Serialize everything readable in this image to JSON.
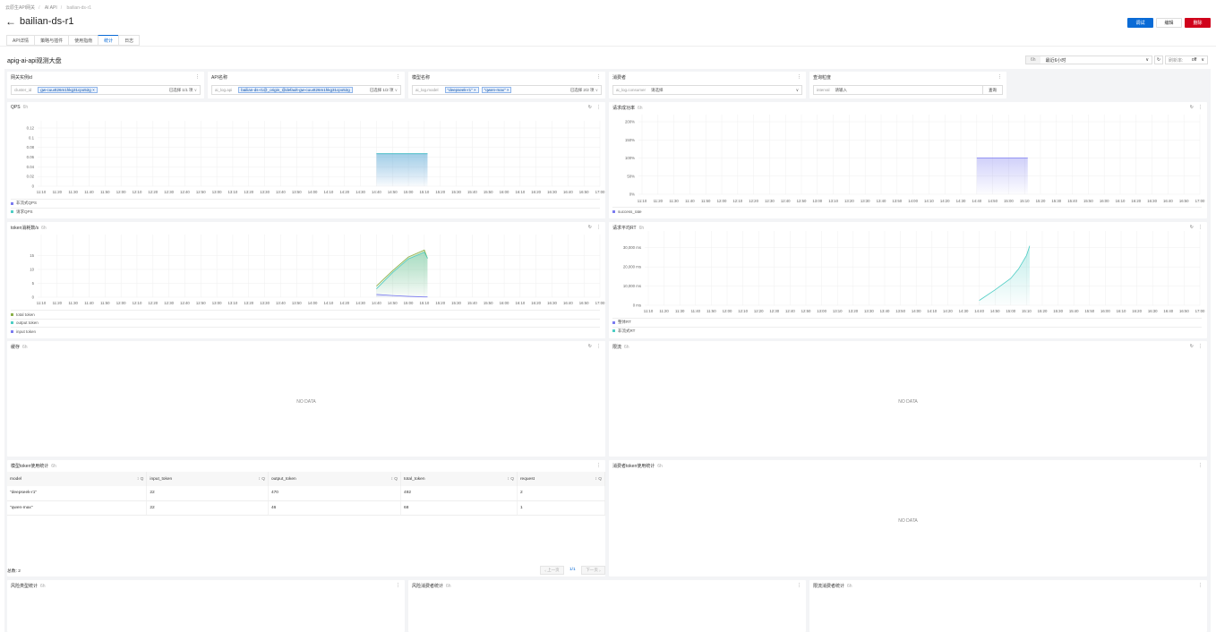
{
  "breadcrumb": [
    "云原生API网关",
    "AI API",
    "bailian-ds-r1"
  ],
  "header": {
    "title": "bailian-ds-r1",
    "back_icon": "arrow-left-icon",
    "buttons": {
      "debug": "调试",
      "edit": "编辑",
      "delete": "删除"
    },
    "colors": {
      "primary": "#0a6bd6",
      "danger": "#d0021b"
    }
  },
  "tabs": [
    {
      "label": "API详情"
    },
    {
      "label": "策略与插件"
    },
    {
      "label": "使用指南"
    },
    {
      "label": "统计",
      "active": true
    },
    {
      "label": "日志"
    }
  ],
  "dashboard": {
    "title": "apig-ai-api观测大盘",
    "time_prefix": "6h",
    "time_value": "最近6小时",
    "refresh_label": "刷新率:",
    "refresh_value": "off"
  },
  "filters": [
    {
      "title": "网关实例id",
      "key": "cluster_id",
      "tags": [
        "gw-cuu4t26m1hkg31cpo52g"
      ],
      "count": "已选择 1/1 项"
    },
    {
      "title": "API名称",
      "key": "ai_log.api",
      "tags": [
        "bailian-ds-r1@_origin_@default-gw-cuu4t26m1hkg31cpo52g"
      ],
      "count": "已选择 1/2 项"
    },
    {
      "title": "模型名称",
      "key": "ai_log.model",
      "tags": [
        "\"deepseek-r1\"",
        "\"qwen-max\""
      ],
      "count": "已选择 2/2 项"
    },
    {
      "title": "消费者",
      "key": "ai_log.consumer",
      "placeholder": "请选择"
    },
    {
      "title": "查询粒度",
      "key": "interval",
      "placeholder": "请输入",
      "button": "查询"
    }
  ],
  "panels": {
    "sub": "6h",
    "nodata": "NO DATA",
    "cache": "缓存",
    "ratelimit": "限流",
    "consumer_token": "消费者token使用统计",
    "risk_type": "风险类型统计",
    "risk_consumer": "风险消费者统计",
    "ratelimit_consumer": "限流消费者统计"
  },
  "table": {
    "title": "模型token使用统计",
    "columns": [
      "model",
      "input_token",
      "output_token",
      "total_token",
      "request"
    ],
    "rows": [
      [
        "\"deepseek-r1\"",
        "22",
        "470",
        "492",
        "2"
      ],
      [
        "\"qwen-max\"",
        "22",
        "46",
        "68",
        "1"
      ]
    ],
    "total": "总数: 2",
    "prev": "上一页",
    "page": "1/1",
    "next": "下一页"
  },
  "chart_data": [
    {
      "type": "area",
      "title": "QPS",
      "x_ticks": [
        "11:10",
        "11:20",
        "11:30",
        "11:40",
        "11:50",
        "12:00",
        "12:10",
        "12:20",
        "12:30",
        "12:40",
        "12:50",
        "13:00",
        "13:10",
        "13:20",
        "13:30",
        "13:40",
        "13:50",
        "14:00",
        "14:10",
        "14:20",
        "14:30",
        "14:40",
        "14:50",
        "15:00",
        "15:10",
        "15:20",
        "15:30",
        "15:40",
        "15:50",
        "16:00",
        "16:10",
        "16:20",
        "16:30",
        "16:40",
        "16:50",
        "17:00"
      ],
      "y_ticks": [
        "0",
        "0.02",
        "0.04",
        "0.06",
        "0.08",
        "0.1",
        "0.12"
      ],
      "ylim": [
        0,
        0.12
      ],
      "grid": true,
      "legend": "bottom",
      "series": [
        {
          "name": "非流式QPS",
          "color": "#7b7bf0",
          "x": [
            "14:40",
            "15:12"
          ],
          "values": [
            0.067,
            0.067
          ]
        },
        {
          "name": "请求QPS",
          "color": "#4ecdc4",
          "x": [
            "14:40",
            "15:12"
          ],
          "values": [
            0.067,
            0.067
          ]
        }
      ]
    },
    {
      "type": "area",
      "title": "请求成功率",
      "x_ticks": [
        "11:10",
        "11:20",
        "11:30",
        "11:40",
        "11:50",
        "12:00",
        "12:10",
        "12:20",
        "12:30",
        "12:40",
        "12:50",
        "13:00",
        "13:10",
        "13:20",
        "13:30",
        "13:40",
        "13:50",
        "14:00",
        "14:10",
        "14:20",
        "14:30",
        "14:40",
        "14:50",
        "15:00",
        "15:10",
        "15:20",
        "15:30",
        "15:40",
        "15:50",
        "16:00",
        "16:10",
        "16:20",
        "16:30",
        "16:40",
        "16:50",
        "17:00"
      ],
      "y_ticks": [
        "0%",
        "50%",
        "100%",
        "150%",
        "200%"
      ],
      "ylim": [
        0,
        200
      ],
      "grid": true,
      "legend": "bottom",
      "series": [
        {
          "name": "success_rate",
          "color": "#7b7bf0",
          "x": [
            "14:40",
            "15:12"
          ],
          "values": [
            100,
            100
          ]
        }
      ]
    },
    {
      "type": "area",
      "title": "token消耗数/s",
      "x_ticks": [
        "11:10",
        "11:20",
        "11:30",
        "11:40",
        "11:50",
        "12:00",
        "12:10",
        "12:20",
        "12:30",
        "12:40",
        "12:50",
        "13:00",
        "13:10",
        "13:20",
        "13:30",
        "13:40",
        "13:50",
        "14:00",
        "14:10",
        "14:20",
        "14:30",
        "14:40",
        "14:50",
        "15:00",
        "15:10",
        "15:20",
        "15:30",
        "15:40",
        "15:50",
        "16:00",
        "16:10",
        "16:20",
        "16:30",
        "16:40",
        "16:50",
        "17:00"
      ],
      "y_ticks": [
        "0",
        "5",
        "10",
        "15"
      ],
      "ylim": [
        0,
        20
      ],
      "grid": true,
      "legend": "bottom",
      "series": [
        {
          "name": "total token",
          "color": "#8bb04a",
          "x": [
            "14:40",
            "14:50",
            "15:00",
            "15:10",
            "15:12"
          ],
          "values": [
            4,
            9.5,
            14.5,
            17,
            14
          ]
        },
        {
          "name": "output token",
          "color": "#4ecdc4",
          "x": [
            "14:40",
            "14:50",
            "15:00",
            "15:10",
            "15:12"
          ],
          "values": [
            3,
            8.8,
            13.8,
            16.2,
            14
          ]
        },
        {
          "name": "input token",
          "color": "#7b7bf0",
          "x": [
            "14:40",
            "14:50",
            "15:00",
            "15:10",
            "15:12"
          ],
          "values": [
            1,
            0.6,
            0.3,
            0.1,
            0.1
          ]
        }
      ]
    },
    {
      "type": "area",
      "title": "请求平均RT",
      "x_ticks": [
        "11:10",
        "11:20",
        "11:30",
        "11:40",
        "11:50",
        "12:00",
        "12:10",
        "12:20",
        "12:30",
        "12:40",
        "12:50",
        "13:00",
        "13:10",
        "13:20",
        "13:30",
        "13:40",
        "13:50",
        "14:00",
        "14:10",
        "14:20",
        "14:30",
        "14:40",
        "14:50",
        "15:00",
        "15:10",
        "15:20",
        "15:30",
        "15:40",
        "15:50",
        "16:00",
        "16:10",
        "16:20",
        "16:30",
        "16:40",
        "16:50",
        "17:00"
      ],
      "y_ticks": [
        "0 ms",
        "10,000 ms",
        "20,000 ms",
        "30,000 ms"
      ],
      "ylim": [
        0,
        35000
      ],
      "grid": true,
      "legend": "bottom",
      "series": [
        {
          "name": "整体RT",
          "color": "#7b7bf0",
          "x": [],
          "values": []
        },
        {
          "name": "非流式RT",
          "color": "#4ecdc4",
          "x": [
            "14:40",
            "14:50",
            "15:00",
            "15:05",
            "15:10",
            "15:12"
          ],
          "values": [
            2500,
            8000,
            14000,
            19000,
            26000,
            31000
          ]
        }
      ]
    }
  ]
}
